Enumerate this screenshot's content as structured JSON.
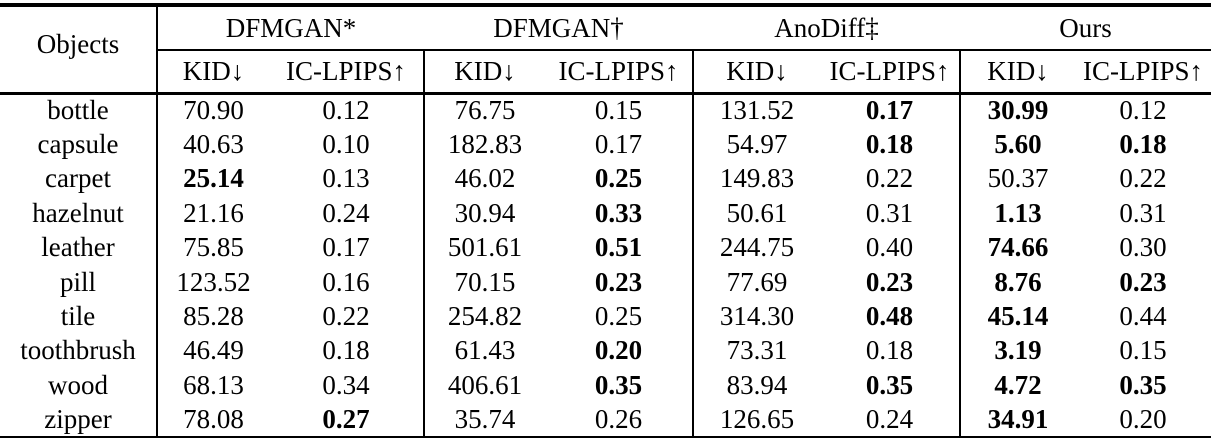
{
  "table": {
    "objects_header": "Objects",
    "groups": [
      {
        "name": "DFMGAN*"
      },
      {
        "name": "DFMGAN†"
      },
      {
        "name": "AnoDiff‡"
      },
      {
        "name": "Ours"
      }
    ],
    "metric_headers": {
      "kid": "KID↓",
      "iclpips": "IC-LPIPS↑"
    },
    "rows": [
      {
        "object": "bottle",
        "values": [
          "70.90",
          "0.12",
          "76.75",
          "0.15",
          "131.52",
          "0.17",
          "30.99",
          "0.12"
        ],
        "bold": [
          false,
          false,
          false,
          false,
          false,
          true,
          true,
          false
        ]
      },
      {
        "object": "capsule",
        "values": [
          "40.63",
          "0.10",
          "182.83",
          "0.17",
          "54.97",
          "0.18",
          "5.60",
          "0.18"
        ],
        "bold": [
          false,
          false,
          false,
          false,
          false,
          true,
          true,
          true
        ]
      },
      {
        "object": "carpet",
        "values": [
          "25.14",
          "0.13",
          "46.02",
          "0.25",
          "149.83",
          "0.22",
          "50.37",
          "0.22"
        ],
        "bold": [
          true,
          false,
          false,
          true,
          false,
          false,
          false,
          false
        ]
      },
      {
        "object": "hazelnut",
        "values": [
          "21.16",
          "0.24",
          "30.94",
          "0.33",
          "50.61",
          "0.31",
          "1.13",
          "0.31"
        ],
        "bold": [
          false,
          false,
          false,
          true,
          false,
          false,
          true,
          false
        ]
      },
      {
        "object": "leather",
        "values": [
          "75.85",
          "0.17",
          "501.61",
          "0.51",
          "244.75",
          "0.40",
          "74.66",
          "0.30"
        ],
        "bold": [
          false,
          false,
          false,
          true,
          false,
          false,
          true,
          false
        ]
      },
      {
        "object": "pill",
        "values": [
          "123.52",
          "0.16",
          "70.15",
          "0.23",
          "77.69",
          "0.23",
          "8.76",
          "0.23"
        ],
        "bold": [
          false,
          false,
          false,
          true,
          false,
          true,
          true,
          true
        ]
      },
      {
        "object": "tile",
        "values": [
          "85.28",
          "0.22",
          "254.82",
          "0.25",
          "314.30",
          "0.48",
          "45.14",
          "0.44"
        ],
        "bold": [
          false,
          false,
          false,
          false,
          false,
          true,
          true,
          false
        ]
      },
      {
        "object": "toothbrush",
        "values": [
          "46.49",
          "0.18",
          "61.43",
          "0.20",
          "73.31",
          "0.18",
          "3.19",
          "0.15"
        ],
        "bold": [
          false,
          false,
          false,
          true,
          false,
          false,
          true,
          false
        ]
      },
      {
        "object": "wood",
        "values": [
          "68.13",
          "0.34",
          "406.61",
          "0.35",
          "83.94",
          "0.35",
          "4.72",
          "0.35"
        ],
        "bold": [
          false,
          false,
          false,
          true,
          false,
          true,
          true,
          true
        ]
      },
      {
        "object": "zipper",
        "values": [
          "78.08",
          "0.27",
          "35.74",
          "0.26",
          "126.65",
          "0.24",
          "34.91",
          "0.20"
        ],
        "bold": [
          false,
          true,
          false,
          false,
          false,
          false,
          true,
          false
        ]
      }
    ]
  },
  "colors": {
    "text": "#000000",
    "background": "#ffffff",
    "rule": "#000000"
  }
}
